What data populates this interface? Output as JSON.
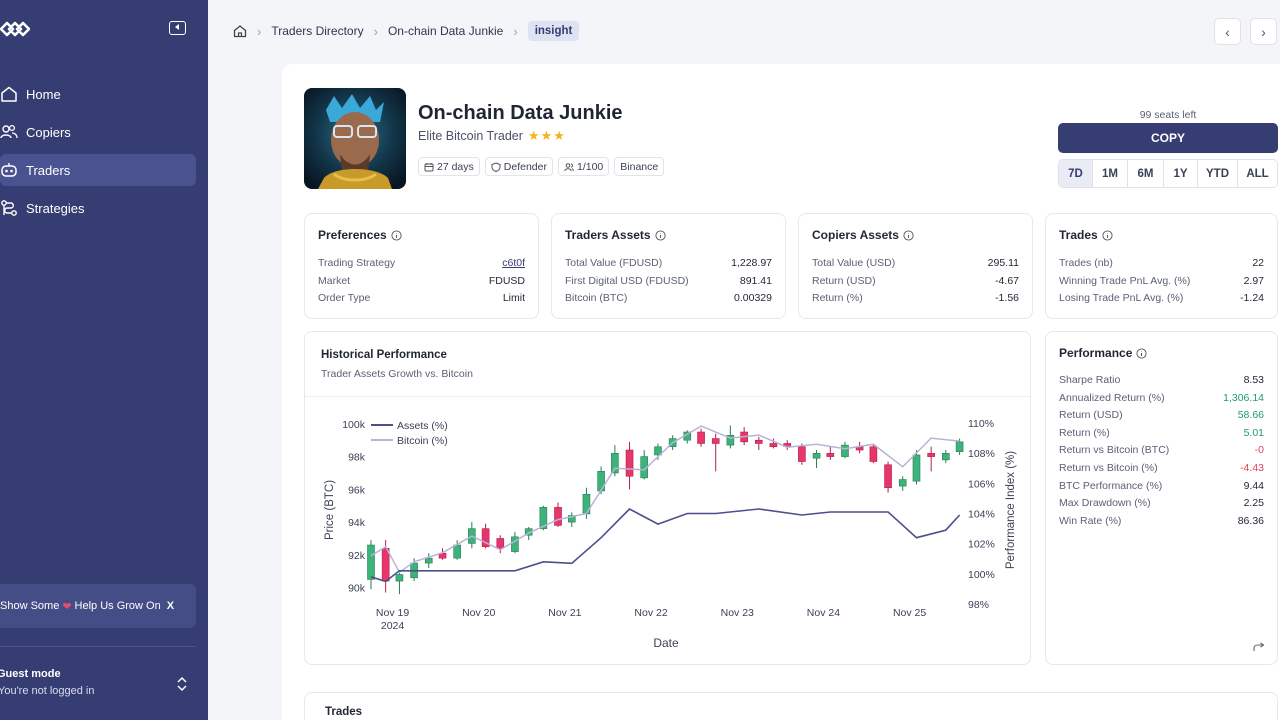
{
  "sidebar": {
    "items": [
      {
        "label": "Home",
        "icon": "home-icon"
      },
      {
        "label": "Copiers",
        "icon": "users-icon"
      },
      {
        "label": "Traders",
        "icon": "robot-icon"
      },
      {
        "label": "Strategies",
        "icon": "route-icon"
      }
    ],
    "active_index": 2,
    "grow_prefix": "Show Some",
    "grow_suffix": "Help Us Grow On",
    "grow_x": "X",
    "guest_title": "Guest mode",
    "guest_sub": "You're not logged in"
  },
  "breadcrumb": {
    "items": [
      "Traders Directory",
      "On-chain Data Junkie"
    ],
    "current": "insight"
  },
  "trader": {
    "name": "On-chain Data Junkie",
    "subtitle": "Elite Bitcoin Trader",
    "stars": 3,
    "badges": {
      "days": "27 days",
      "style": "Defender",
      "copiers": "1/100",
      "exchange": "Binance"
    },
    "seats": "99 seats left",
    "copy_label": "COPY",
    "periods": [
      "7D",
      "1M",
      "6M",
      "1Y",
      "YTD",
      "ALL"
    ],
    "active_period": "7D"
  },
  "preferences": {
    "title": "Preferences",
    "rows": [
      {
        "k": "Trading Strategy",
        "v": "c6t0f"
      },
      {
        "k": "Market",
        "v": "FDUSD"
      },
      {
        "k": "Order Type",
        "v": "Limit"
      }
    ]
  },
  "traders_assets": {
    "title": "Traders Assets",
    "rows": [
      {
        "k": "Total Value (FDUSD)",
        "v": "1,228.97"
      },
      {
        "k": "First Digital USD (FDUSD)",
        "v": "891.41"
      },
      {
        "k": "Bitcoin (BTC)",
        "v": "0.00329"
      }
    ]
  },
  "copiers_assets": {
    "title": "Copiers Assets",
    "rows": [
      {
        "k": "Total Value (USD)",
        "v": "295.11"
      },
      {
        "k": "Return (USD)",
        "v": "-4.67"
      },
      {
        "k": "Return (%)",
        "v": "-1.56"
      }
    ]
  },
  "trades_stats": {
    "title": "Trades",
    "rows": [
      {
        "k": "Trades (nb)",
        "v": "22"
      },
      {
        "k": "Winning Trade PnL Avg. (%)",
        "v": "2.97"
      },
      {
        "k": "Losing Trade PnL Avg. (%)",
        "v": "-1.24"
      }
    ]
  },
  "performance": {
    "title": "Performance",
    "rows": [
      {
        "k": "Sharpe Ratio",
        "v": "8.53",
        "tone": ""
      },
      {
        "k": "Annualized Return (%)",
        "v": "1,306.14",
        "tone": "pos"
      },
      {
        "k": "Return (USD)",
        "v": "58.66",
        "tone": "pos"
      },
      {
        "k": "Return (%)",
        "v": "5.01",
        "tone": "pos"
      },
      {
        "k": "Return vs Bitcoin (BTC)",
        "v": "-0",
        "tone": "neg"
      },
      {
        "k": "Return vs Bitcoin (%)",
        "v": "-4.43",
        "tone": "neg"
      },
      {
        "k": "BTC Performance (%)",
        "v": "9.44",
        "tone": ""
      },
      {
        "k": "Max Drawdown (%)",
        "v": "2.25",
        "tone": ""
      },
      {
        "k": "Win Rate (%)",
        "v": "86.36",
        "tone": ""
      }
    ]
  },
  "chart_section": {
    "title": "Historical Performance",
    "subtitle": "Trader Assets Growth vs. Bitcoin"
  },
  "trades_section": {
    "title": "Trades"
  },
  "colors": {
    "sidebar": "#363d72",
    "accent": "#363d72",
    "up": "#3cb37a",
    "down": "#e8366b",
    "assets_line": "#4b4f8c",
    "bitcoin_line": "#b9b3d6"
  },
  "chart_data": {
    "type": "candlestick",
    "xlabel": "Date",
    "ylabel_left": "Price (BTC)",
    "ylabel_right": "Performance Index (%)",
    "x_ticks": [
      "Nov 19",
      "Nov 20",
      "Nov 21",
      "Nov 22",
      "Nov 23",
      "Nov 24",
      "Nov 25"
    ],
    "x_sub_tick": "2024",
    "y_left_ticks": [
      "90k",
      "92k",
      "94k",
      "96k",
      "98k",
      "100k"
    ],
    "y_right_ticks": [
      "98%",
      "100%",
      "102%",
      "104%",
      "106%",
      "108%",
      "110%"
    ],
    "ylim_left": [
      89000,
      100600
    ],
    "ylim_right": [
      98,
      110.6
    ],
    "legend": [
      "Assets (%)",
      "Bitcoin (%)"
    ],
    "legend_position": "top-left",
    "candles": [
      {
        "t": 0.0,
        "o": 90500,
        "h": 92900,
        "l": 89900,
        "c": 92600
      },
      {
        "t": 0.17,
        "o": 92400,
        "h": 92900,
        "l": 89700,
        "c": 90400
      },
      {
        "t": 0.33,
        "o": 90400,
        "h": 91000,
        "l": 89600,
        "c": 90800
      },
      {
        "t": 0.5,
        "o": 90600,
        "h": 91800,
        "l": 90400,
        "c": 91500
      },
      {
        "t": 0.67,
        "o": 91500,
        "h": 92100,
        "l": 91200,
        "c": 91800
      },
      {
        "t": 0.83,
        "o": 92100,
        "h": 92400,
        "l": 91700,
        "c": 91800
      },
      {
        "t": 1.0,
        "o": 91800,
        "h": 92900,
        "l": 91700,
        "c": 92600
      },
      {
        "t": 1.17,
        "o": 92700,
        "h": 94000,
        "l": 92400,
        "c": 93600
      },
      {
        "t": 1.33,
        "o": 93600,
        "h": 93900,
        "l": 92400,
        "c": 92500
      },
      {
        "t": 1.5,
        "o": 93000,
        "h": 93200,
        "l": 92100,
        "c": 92400
      },
      {
        "t": 1.67,
        "o": 92200,
        "h": 93400,
        "l": 92100,
        "c": 93100
      },
      {
        "t": 1.83,
        "o": 93200,
        "h": 93700,
        "l": 92900,
        "c": 93600
      },
      {
        "t": 2.0,
        "o": 93600,
        "h": 95000,
        "l": 93500,
        "c": 94900
      },
      {
        "t": 2.17,
        "o": 94900,
        "h": 95200,
        "l": 93700,
        "c": 93800
      },
      {
        "t": 2.33,
        "o": 94000,
        "h": 94600,
        "l": 93700,
        "c": 94400
      },
      {
        "t": 2.5,
        "o": 94500,
        "h": 96100,
        "l": 94200,
        "c": 95700
      },
      {
        "t": 2.67,
        "o": 95900,
        "h": 97400,
        "l": 95700,
        "c": 97100
      },
      {
        "t": 2.83,
        "o": 97000,
        "h": 98700,
        "l": 96800,
        "c": 98200
      },
      {
        "t": 3.0,
        "o": 98400,
        "h": 98900,
        "l": 96000,
        "c": 96800
      },
      {
        "t": 3.17,
        "o": 96700,
        "h": 98400,
        "l": 96600,
        "c": 98000
      },
      {
        "t": 3.33,
        "o": 98100,
        "h": 98800,
        "l": 97800,
        "c": 98600
      },
      {
        "t": 3.5,
        "o": 98600,
        "h": 99300,
        "l": 98400,
        "c": 99100
      },
      {
        "t": 3.67,
        "o": 99000,
        "h": 99600,
        "l": 98800,
        "c": 99500
      },
      {
        "t": 3.83,
        "o": 99500,
        "h": 99700,
        "l": 98600,
        "c": 98800
      },
      {
        "t": 4.0,
        "o": 99100,
        "h": 99400,
        "l": 97100,
        "c": 98800
      },
      {
        "t": 4.17,
        "o": 98700,
        "h": 99900,
        "l": 98500,
        "c": 99300
      },
      {
        "t": 4.33,
        "o": 99500,
        "h": 99800,
        "l": 98700,
        "c": 98900
      },
      {
        "t": 4.5,
        "o": 99000,
        "h": 99200,
        "l": 98400,
        "c": 98800
      },
      {
        "t": 4.67,
        "o": 98800,
        "h": 99100,
        "l": 98500,
        "c": 98600
      },
      {
        "t": 4.83,
        "o": 98800,
        "h": 99000,
        "l": 98400,
        "c": 98600
      },
      {
        "t": 5.0,
        "o": 98600,
        "h": 98800,
        "l": 97500,
        "c": 97700
      },
      {
        "t": 5.17,
        "o": 97900,
        "h": 98400,
        "l": 97300,
        "c": 98200
      },
      {
        "t": 5.33,
        "o": 98200,
        "h": 98600,
        "l": 97800,
        "c": 98000
      },
      {
        "t": 5.5,
        "o": 98000,
        "h": 98900,
        "l": 97900,
        "c": 98700
      },
      {
        "t": 5.67,
        "o": 98600,
        "h": 98900,
        "l": 98200,
        "c": 98400
      },
      {
        "t": 5.83,
        "o": 98600,
        "h": 98800,
        "l": 97600,
        "c": 97700
      },
      {
        "t": 6.0,
        "o": 97500,
        "h": 97700,
        "l": 95800,
        "c": 96100
      },
      {
        "t": 6.17,
        "o": 96200,
        "h": 96800,
        "l": 95900,
        "c": 96600
      },
      {
        "t": 6.33,
        "o": 96500,
        "h": 98400,
        "l": 96300,
        "c": 98100
      },
      {
        "t": 6.5,
        "o": 98200,
        "h": 98600,
        "l": 97100,
        "c": 98000
      },
      {
        "t": 6.67,
        "o": 97800,
        "h": 98400,
        "l": 97600,
        "c": 98200
      },
      {
        "t": 6.83,
        "o": 98300,
        "h": 99100,
        "l": 98100,
        "c": 98900
      }
    ],
    "assets_pct": [
      [
        0.0,
        99.8
      ],
      [
        0.17,
        99.5
      ],
      [
        0.33,
        100.2
      ],
      [
        0.5,
        100.2
      ],
      [
        1.0,
        100.2
      ],
      [
        1.67,
        100.2
      ],
      [
        2.0,
        100.8
      ],
      [
        2.33,
        100.7
      ],
      [
        2.67,
        102.4
      ],
      [
        3.0,
        104.3
      ],
      [
        3.33,
        103.3
      ],
      [
        3.67,
        104.0
      ],
      [
        4.0,
        104.0
      ],
      [
        4.5,
        104.3
      ],
      [
        5.0,
        103.9
      ],
      [
        5.33,
        104.1
      ],
      [
        6.0,
        104.1
      ],
      [
        6.33,
        102.4
      ],
      [
        6.67,
        102.9
      ],
      [
        6.83,
        103.9
      ]
    ],
    "bitcoin_pct": [
      [
        0.0,
        101.2
      ],
      [
        0.17,
        101.8
      ],
      [
        0.33,
        100.1
      ],
      [
        0.5,
        100.8
      ],
      [
        0.83,
        101.4
      ],
      [
        1.17,
        102.5
      ],
      [
        1.5,
        101.6
      ],
      [
        1.83,
        102.7
      ],
      [
        2.17,
        103.6
      ],
      [
        2.5,
        104.0
      ],
      [
        2.83,
        107.0
      ],
      [
        3.17,
        106.9
      ],
      [
        3.5,
        108.7
      ],
      [
        3.83,
        109.8
      ],
      [
        4.17,
        109.0
      ],
      [
        4.5,
        109.2
      ],
      [
        4.83,
        108.4
      ],
      [
        5.17,
        108.6
      ],
      [
        5.5,
        108.3
      ],
      [
        5.83,
        108.6
      ],
      [
        6.17,
        107.1
      ],
      [
        6.5,
        109.0
      ],
      [
        6.83,
        108.8
      ]
    ]
  }
}
